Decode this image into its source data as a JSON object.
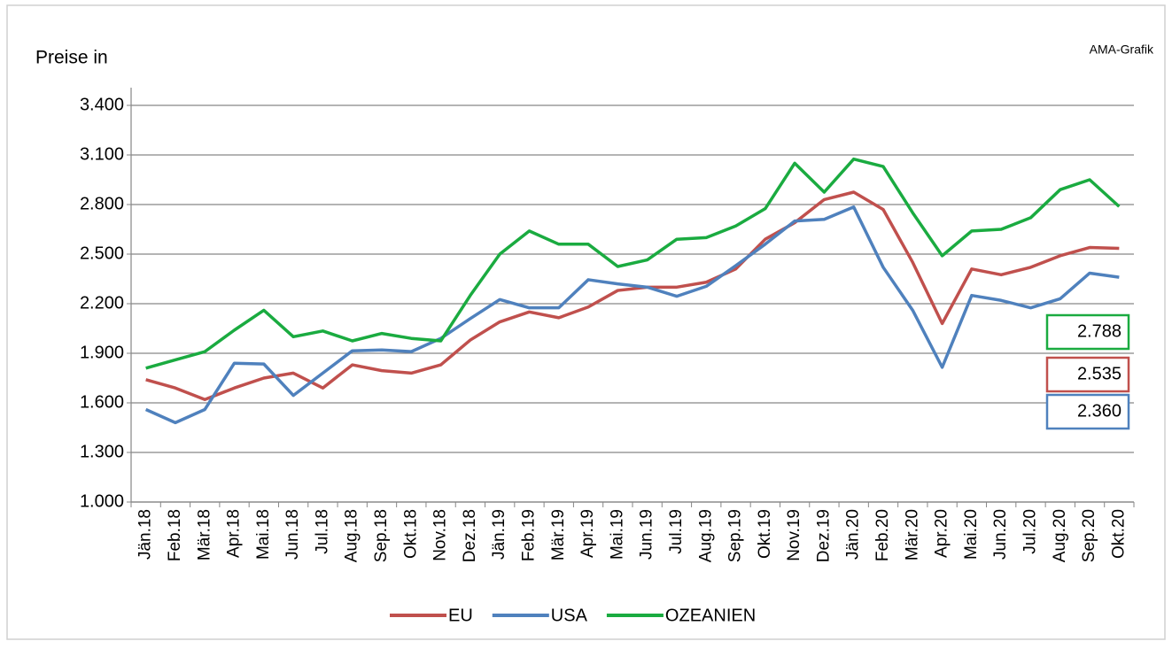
{
  "chart_data": {
    "type": "line",
    "title": "Preise in",
    "annotation": "AMA-Grafik",
    "categories": [
      "Jän.18",
      "Feb.18",
      "Mär.18",
      "Apr.18",
      "Mai.18",
      "Jun.18",
      "Jul.18",
      "Aug.18",
      "Sep.18",
      "Okt.18",
      "Nov.18",
      "Dez.18",
      "Jän.19",
      "Feb.19",
      "Mär.19",
      "Apr.19",
      "Mai.19",
      "Jun.19",
      "Jul.19",
      "Aug.19",
      "Sep.19",
      "Okt.19",
      "Nov.19",
      "Dez.19",
      "Jän.20",
      "Feb.20",
      "Mär.20",
      "Apr.20",
      "Mai.20",
      "Jun.20",
      "Jul.20",
      "Aug.20",
      "Sep.20",
      "Okt.20"
    ],
    "series": [
      {
        "name": "EU",
        "color": "#c0504d",
        "values": [
          1740,
          1690,
          1620,
          1690,
          1750,
          1780,
          1690,
          1830,
          1795,
          1780,
          1830,
          1980,
          2090,
          2150,
          2115,
          2180,
          2280,
          2300,
          2300,
          2330,
          2410,
          2590,
          2690,
          2830,
          2875,
          2770,
          2450,
          2080,
          2410,
          2375,
          2420,
          2490,
          2540,
          2535
        ],
        "value_labels": [
          null,
          null,
          null,
          null,
          null,
          null,
          null,
          null,
          null,
          null,
          null,
          null,
          null,
          null,
          null,
          null,
          null,
          null,
          null,
          null,
          null,
          null,
          null,
          null,
          null,
          null,
          null,
          null,
          null,
          null,
          null,
          null,
          null,
          "2.535"
        ]
      },
      {
        "name": "USA",
        "color": "#4f81bd",
        "values": [
          1560,
          1480,
          1560,
          1840,
          1835,
          1645,
          1780,
          1915,
          1920,
          1910,
          1990,
          2110,
          2225,
          2175,
          2175,
          2345,
          2320,
          2300,
          2245,
          2305,
          2430,
          2560,
          2700,
          2710,
          2785,
          2420,
          2160,
          1815,
          2250,
          2220,
          2175,
          2230,
          2385,
          2360
        ],
        "value_labels": [
          null,
          null,
          null,
          null,
          null,
          null,
          null,
          null,
          null,
          null,
          null,
          null,
          null,
          null,
          null,
          null,
          null,
          null,
          null,
          null,
          null,
          null,
          null,
          null,
          null,
          null,
          null,
          null,
          null,
          null,
          null,
          null,
          null,
          "2.360"
        ]
      },
      {
        "name": "OZEANIEN",
        "color": "#1aab40",
        "values": [
          1810,
          1860,
          1910,
          2040,
          2160,
          2000,
          2035,
          1975,
          2020,
          1990,
          1975,
          2250,
          2500,
          2640,
          2560,
          2560,
          2425,
          2465,
          2590,
          2600,
          2670,
          2775,
          3050,
          2875,
          3075,
          3030,
          2750,
          2490,
          2640,
          2650,
          2720,
          2890,
          2950,
          2788
        ],
        "value_labels": [
          null,
          null,
          null,
          null,
          null,
          null,
          null,
          null,
          null,
          null,
          null,
          null,
          null,
          null,
          null,
          null,
          null,
          null,
          null,
          null,
          null,
          null,
          null,
          null,
          null,
          null,
          null,
          null,
          null,
          null,
          null,
          null,
          null,
          "2.788"
        ]
      }
    ],
    "ylim": [
      1000,
      3400
    ],
    "yticks": [
      {
        "value": 1000,
        "label": "1.000"
      },
      {
        "value": 1300,
        "label": "1.300"
      },
      {
        "value": 1600,
        "label": "1.600"
      },
      {
        "value": 1900,
        "label": "1.900"
      },
      {
        "value": 2200,
        "label": "2.200"
      },
      {
        "value": 2500,
        "label": "2.500"
      },
      {
        "value": 2800,
        "label": "2.800"
      },
      {
        "value": 3100,
        "label": "3.100"
      },
      {
        "value": 3400,
        "label": "3.400"
      }
    ],
    "grid": true,
    "legend": "bottom"
  }
}
